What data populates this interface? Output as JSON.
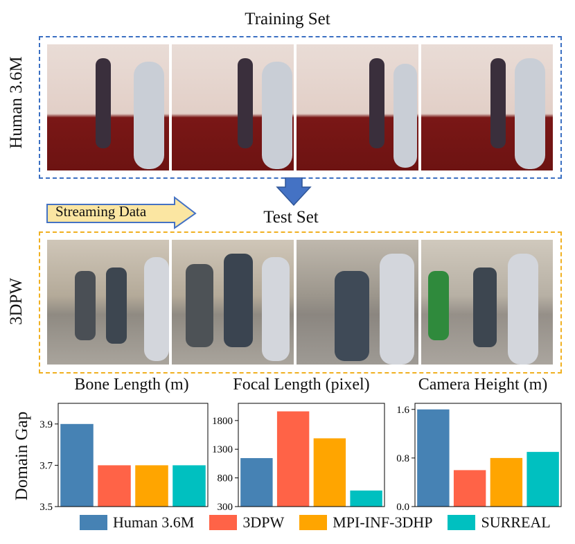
{
  "figure": {
    "training_title": "Training Set",
    "test_title": "Test Set",
    "train_dataset_label": "Human 3.6M",
    "test_dataset_label": "3DPW",
    "streaming_label": "Streaming Data",
    "y_axis_label": "Domain Gap"
  },
  "legend": [
    {
      "name": "Human 3.6M",
      "color": "#4682b4"
    },
    {
      "name": "3DPW",
      "color": "#ff6347"
    },
    {
      "name": "MPI-INF-3DHP",
      "color": "#ffa500"
    },
    {
      "name": "SURREAL",
      "color": "#00c0c0"
    }
  ],
  "chart_data": [
    {
      "type": "bar",
      "title": "Bone Length (m)",
      "categories": [
        "Human 3.6M",
        "3DPW",
        "MPI-INF-3DHP",
        "SURREAL"
      ],
      "values": [
        3.9,
        3.7,
        3.7,
        3.7
      ],
      "ylim": [
        3.5,
        4.0
      ],
      "yticks": [
        "3.5",
        "3.7",
        "3.9"
      ],
      "ytick_values": [
        3.5,
        3.7,
        3.9
      ]
    },
    {
      "type": "bar",
      "title": "Focal Length (pixel)",
      "categories": [
        "Human 3.6M",
        "3DPW",
        "MPI-INF-3DHP",
        "SURREAL"
      ],
      "values": [
        1145,
        1960,
        1490,
        580
      ],
      "ylim": [
        300,
        2100
      ],
      "yticks": [
        "300",
        "800",
        "1300",
        "1800"
      ],
      "ytick_values": [
        300,
        800,
        1300,
        1800
      ]
    },
    {
      "type": "bar",
      "title": "Camera Height (m)",
      "categories": [
        "Human 3.6M",
        "3DPW",
        "MPI-INF-3DHP",
        "SURREAL"
      ],
      "values": [
        1.6,
        0.6,
        0.8,
        0.9
      ],
      "ylim": [
        0.0,
        1.7
      ],
      "yticks": [
        "0.0",
        "0.8",
        "1.6"
      ],
      "ytick_values": [
        0.0,
        0.8,
        1.6
      ]
    }
  ]
}
